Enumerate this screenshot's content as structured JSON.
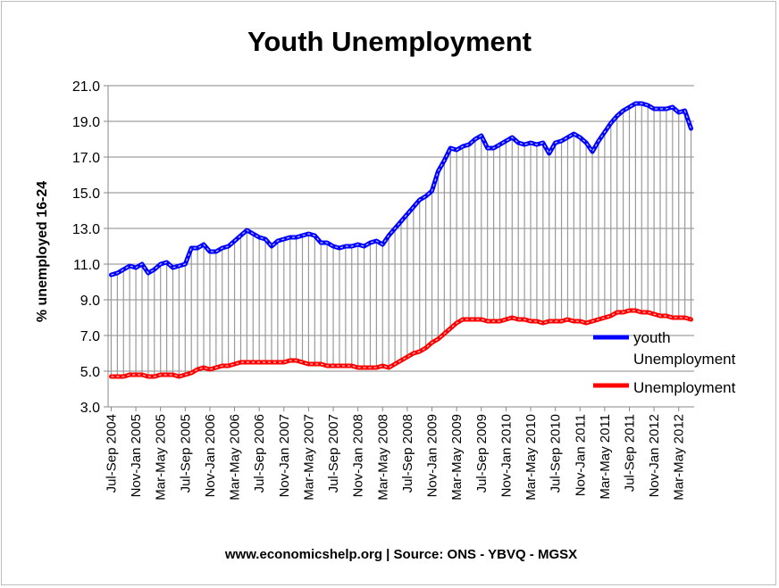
{
  "chart_data": {
    "type": "line",
    "title": "Youth Unemployment",
    "ylabel": "% unemployed 16-24",
    "xlabel": "",
    "ylim": [
      3.0,
      21.0
    ],
    "yticks": [
      "3.0",
      "5.0",
      "7.0",
      "9.0",
      "11.0",
      "13.0",
      "15.0",
      "17.0",
      "19.0",
      "21.0"
    ],
    "xtick_labels": [
      "Jul-Sep 2004",
      "Nov-Jan 2005",
      "Mar-May 2005",
      "Jul-Sep 2005",
      "Nov-Jan 2006",
      "Mar-May 2006",
      "Jul-Sep 2006",
      "Nov-Jan 2007",
      "Mar-May 2007",
      "Jul-Sep 2007",
      "Nov-Jan 2008",
      "Mar-May 2008",
      "Jul-Sep 2008",
      "Nov-Jan 2009",
      "Mar-May 2009",
      "Jul-Sep 2009",
      "Nov-Jan 2010",
      "Mar-May 2010",
      "Jul-Sep 2010",
      "Nov-Jan 2011",
      "Mar-May 2011",
      "Jul-Sep 2011",
      "Nov-Jan 2012",
      "Mar-May 2012"
    ],
    "legend_position": "right",
    "series": [
      {
        "name": "youth Unemployment",
        "color": "#0000ff",
        "values": [
          10.4,
          10.5,
          10.7,
          10.9,
          10.8,
          11.0,
          10.5,
          10.7,
          11.0,
          11.1,
          10.8,
          10.9,
          11.0,
          11.9,
          11.9,
          12.1,
          11.7,
          11.7,
          11.9,
          12.0,
          12.3,
          12.6,
          12.9,
          12.7,
          12.5,
          12.4,
          12.0,
          12.3,
          12.4,
          12.5,
          12.5,
          12.6,
          12.7,
          12.6,
          12.2,
          12.2,
          12.0,
          11.9,
          12.0,
          12.0,
          12.1,
          12.0,
          12.2,
          12.3,
          12.1,
          12.6,
          13.0,
          13.4,
          13.8,
          14.2,
          14.6,
          14.8,
          15.1,
          16.2,
          16.8,
          17.5,
          17.4,
          17.6,
          17.7,
          18.0,
          18.2,
          17.5,
          17.5,
          17.7,
          17.9,
          18.1,
          17.8,
          17.7,
          17.8,
          17.7,
          17.8,
          17.2,
          17.8,
          17.9,
          18.1,
          18.3,
          18.1,
          17.8,
          17.3,
          17.9,
          18.4,
          18.9,
          19.3,
          19.6,
          19.8,
          20.0,
          20.0,
          19.9,
          19.7,
          19.7,
          19.7,
          19.8,
          19.5,
          19.6,
          18.6
        ]
      },
      {
        "name": "Unemployment",
        "color": "#ff0000",
        "values": [
          4.7,
          4.7,
          4.7,
          4.8,
          4.8,
          4.8,
          4.7,
          4.7,
          4.8,
          4.8,
          4.8,
          4.7,
          4.8,
          4.9,
          5.1,
          5.2,
          5.1,
          5.2,
          5.3,
          5.3,
          5.4,
          5.5,
          5.5,
          5.5,
          5.5,
          5.5,
          5.5,
          5.5,
          5.5,
          5.6,
          5.6,
          5.5,
          5.4,
          5.4,
          5.4,
          5.3,
          5.3,
          5.3,
          5.3,
          5.3,
          5.2,
          5.2,
          5.2,
          5.2,
          5.3,
          5.2,
          5.4,
          5.6,
          5.8,
          6.0,
          6.1,
          6.3,
          6.6,
          6.8,
          7.1,
          7.4,
          7.7,
          7.9,
          7.9,
          7.9,
          7.9,
          7.8,
          7.8,
          7.8,
          7.9,
          8.0,
          7.9,
          7.9,
          7.8,
          7.8,
          7.7,
          7.8,
          7.8,
          7.8,
          7.9,
          7.8,
          7.8,
          7.7,
          7.8,
          7.9,
          8.0,
          8.1,
          8.3,
          8.3,
          8.4,
          8.4,
          8.3,
          8.3,
          8.2,
          8.1,
          8.1,
          8.0,
          8.0,
          8.0,
          7.9
        ]
      }
    ]
  },
  "source_text": "www.economicshelp.org | Source:  ONS - YBVQ - MGSX"
}
